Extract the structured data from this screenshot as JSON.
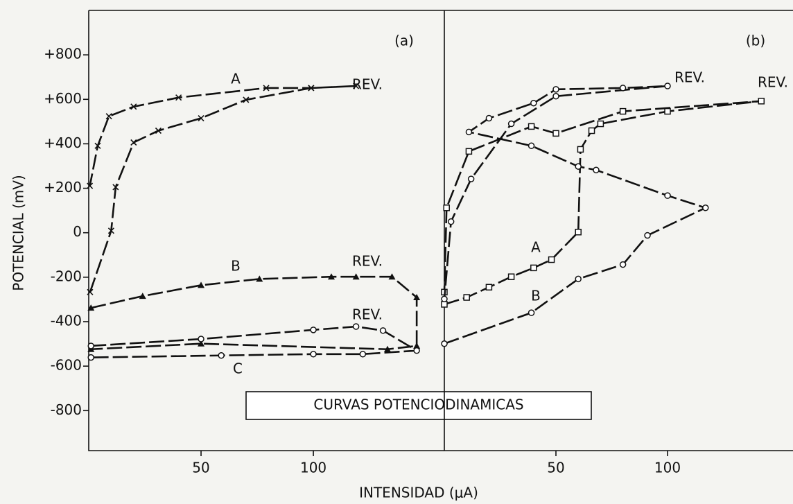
{
  "chart_data": [
    {
      "type": "line",
      "panel_label": "(a)",
      "title": "CURVAS POTENCIODINAMICAS",
      "xlabel": "INTENSIDAD (μA)",
      "ylabel": "POTENCIAL (mV)",
      "xlim": [
        0,
        158.3
      ],
      "ylim": [
        -980,
        1000
      ],
      "xticks": [
        50,
        100
      ],
      "yticks": [
        {
          "value": 800,
          "label": "+800"
        },
        {
          "value": 600,
          "label": "+600"
        },
        {
          "value": 400,
          "label": "+400"
        },
        {
          "value": 200,
          "label": "+200"
        },
        0,
        -200,
        -400,
        -600,
        -800
      ],
      "series": [
        {
          "name": "A",
          "rev_label": "REV.",
          "color": "#111111",
          "marker": "x",
          "x": [
            0.6,
            10,
            12,
            20,
            31,
            50,
            70,
            99,
            119,
            99,
            79,
            40,
            20,
            9,
            4,
            0.5
          ],
          "y": [
            -267,
            9,
            205,
            406,
            459,
            515,
            598,
            651,
            660,
            651,
            651,
            608,
            567,
            524,
            391,
            211
          ]
        },
        {
          "name": "B",
          "rev_label": "REV.",
          "color": "#111111",
          "marker": "triangle",
          "x": [
            1,
            24,
            50,
            76,
            108,
            119,
            135,
            146,
            146,
            133,
            50,
            1
          ],
          "y": [
            -338,
            -285,
            -236,
            -208,
            -198,
            -198,
            -198,
            -291,
            -509,
            -524,
            -499,
            -524
          ]
        },
        {
          "name": "C",
          "rev_label": "REV.",
          "color": "#111111",
          "marker": "circle",
          "x": [
            1,
            50,
            100,
            119,
            131,
            146,
            122,
            100,
            59,
            1
          ],
          "y": [
            -509,
            -478,
            -437,
            -422,
            -440,
            -530,
            -546,
            -546,
            -552,
            -561
          ]
        }
      ]
    },
    {
      "type": "line",
      "panel_label": "(b)",
      "xlim": [
        0,
        156.2
      ],
      "ylim": [
        -980,
        1000
      ],
      "xticks": [
        50,
        100
      ],
      "series": [
        {
          "name": "A",
          "rev_label": "REV.",
          "color": "#111111",
          "marker": "square",
          "x": [
            0,
            10,
            20,
            30,
            40,
            48,
            60,
            61,
            66,
            70,
            100,
            142,
            80,
            50,
            39,
            11,
            1,
            0
          ],
          "y": [
            -322,
            -291,
            -245,
            -198,
            -158,
            -121,
            3,
            375,
            459,
            490,
            546,
            592,
            546,
            447,
            478,
            366,
            112,
            -267
          ]
        },
        {
          "name": "B",
          "rev_label": "REV.",
          "color": "#111111",
          "marker": "circle",
          "x": [
            0,
            39,
            60,
            80,
            91,
            117,
            100,
            68,
            60,
            39,
            11,
            20,
            40,
            50,
            80,
            100,
            50,
            30,
            12,
            3,
            0
          ],
          "y": [
            -499,
            -360,
            -208,
            -143,
            -12,
            112,
            167,
            282,
            298,
            391,
            453,
            515,
            583,
            645,
            651,
            660,
            614,
            490,
            242,
            50,
            -298
          ]
        }
      ]
    }
  ]
}
